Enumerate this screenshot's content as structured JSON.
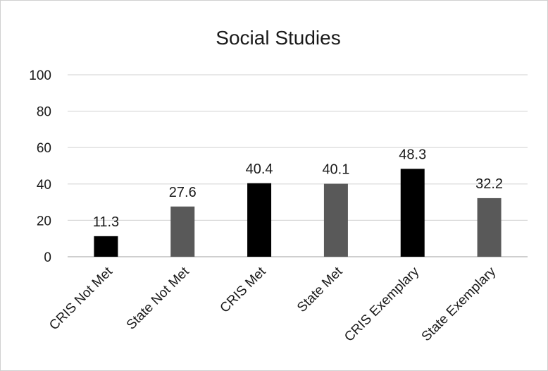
{
  "chart_data": {
    "type": "bar",
    "title": "Social Studies",
    "xlabel": "",
    "ylabel": "",
    "categories": [
      "CRIS Not Met",
      "State Not Met",
      "CRIS Met",
      "State Met",
      "CRIS Exemplary",
      "State Exemplary"
    ],
    "values": [
      11.3,
      27.6,
      40.4,
      40.1,
      48.3,
      32.2
    ],
    "value_labels": [
      "11.3",
      "27.6",
      "40.4",
      "40.1",
      "48.3",
      "32.2"
    ],
    "bar_colors": [
      "#000000",
      "#595959",
      "#000000",
      "#595959",
      "#000000",
      "#595959"
    ],
    "ylim": [
      0,
      100
    ],
    "yticks": [
      0,
      20,
      40,
      60,
      80,
      100
    ],
    "ytick_labels": [
      "0",
      "20",
      "40",
      "60",
      "80",
      "100"
    ],
    "grid": true,
    "legend": "none"
  },
  "colors": {
    "gridline": "#d9d9d9",
    "axis": "#bfbfbf",
    "text": "#1a1a1a"
  }
}
